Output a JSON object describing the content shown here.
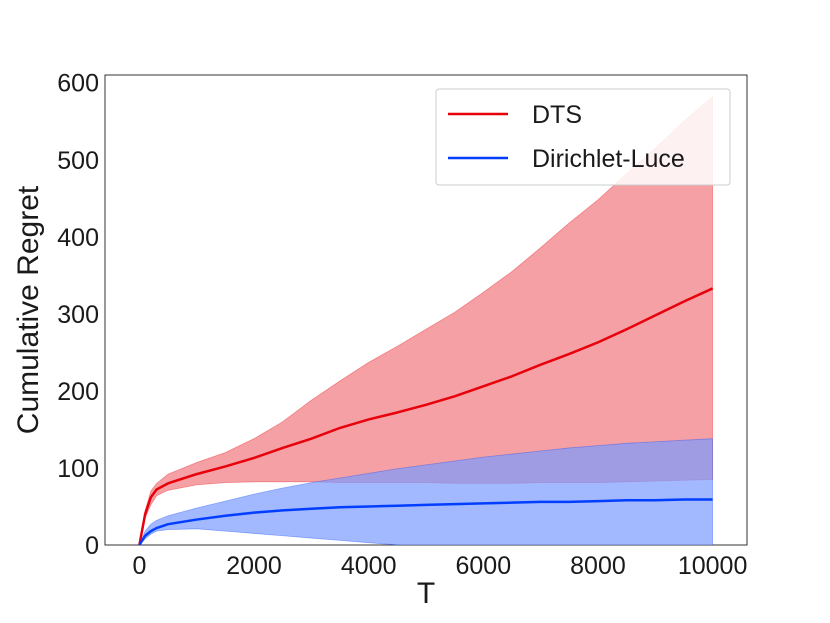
{
  "chart_data": {
    "type": "line",
    "xlabel": "T",
    "ylabel": "Cumulative Regret",
    "xlim": [
      -600,
      10600
    ],
    "ylim": [
      0,
      610
    ],
    "xticks": [
      0,
      2000,
      4000,
      6000,
      8000,
      10000
    ],
    "yticks": [
      0,
      100,
      200,
      300,
      400,
      500,
      600
    ],
    "grid": false,
    "legend_position": "top-right",
    "series": [
      {
        "name": "DTS",
        "color": "#e8000b",
        "band_color": "#f0787d",
        "x": [
          0,
          100,
          200,
          300,
          500,
          1000,
          1500,
          2000,
          2500,
          3000,
          3500,
          4000,
          4500,
          5000,
          5500,
          6000,
          6500,
          7000,
          7500,
          8000,
          8500,
          9000,
          9500,
          10000
        ],
        "mean": [
          0,
          40,
          62,
          72,
          80,
          92,
          102,
          113,
          126,
          138,
          152,
          163,
          172,
          182,
          193,
          206,
          219,
          234,
          248,
          263,
          280,
          298,
          316,
          333
        ],
        "upper": [
          0,
          45,
          70,
          80,
          92,
          107,
          120,
          138,
          160,
          188,
          213,
          237,
          258,
          280,
          302,
          328,
          355,
          386,
          418,
          448,
          482,
          515,
          550,
          582
        ],
        "lower": [
          0,
          35,
          52,
          64,
          71,
          78,
          81,
          82,
          82,
          82,
          81,
          81,
          81,
          81,
          80,
          80,
          80,
          81,
          81,
          81,
          82,
          83,
          84,
          85
        ]
      },
      {
        "name": "Dirichlet-Luce",
        "color": "#023eff",
        "band_color": "#7b9aff",
        "x": [
          0,
          100,
          200,
          300,
          500,
          1000,
          1500,
          2000,
          2500,
          3000,
          3500,
          4000,
          4500,
          5000,
          5500,
          6000,
          6500,
          7000,
          7500,
          8000,
          8500,
          9000,
          9500,
          10000
        ],
        "mean": [
          0,
          12,
          18,
          22,
          27,
          33,
          38,
          42,
          45,
          47,
          49,
          50,
          51,
          52,
          53,
          54,
          55,
          56,
          56,
          57,
          58,
          58,
          59,
          59
        ],
        "upper": [
          0,
          18,
          27,
          32,
          38,
          48,
          57,
          66,
          74,
          81,
          87,
          93,
          99,
          104,
          109,
          114,
          118,
          122,
          126,
          129,
          132,
          134,
          136,
          138
        ],
        "lower": [
          0,
          8,
          14,
          18,
          20,
          21,
          18,
          15,
          12,
          9,
          6,
          3,
          0,
          -3,
          -6,
          -9,
          -12,
          -15,
          -18,
          -21,
          -24,
          -27,
          -30,
          -33
        ]
      }
    ]
  }
}
